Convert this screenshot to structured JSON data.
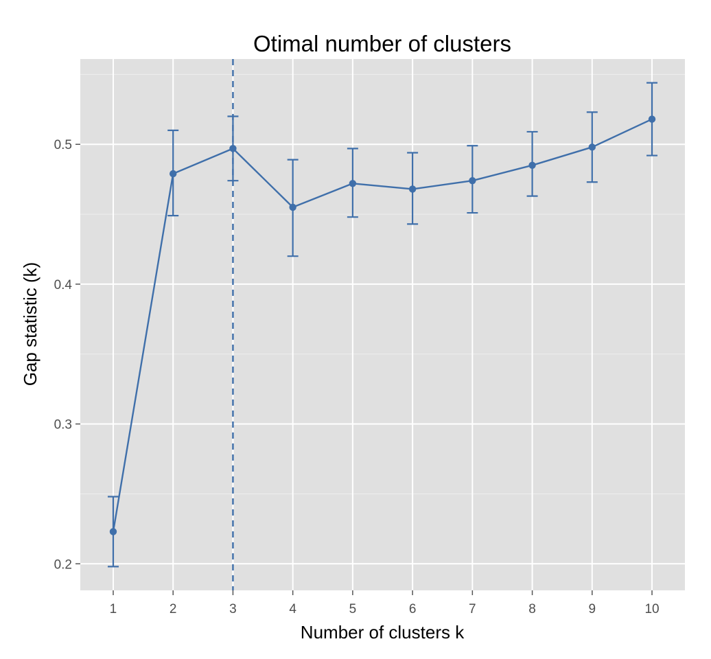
{
  "chart_data": {
    "type": "line",
    "title": "Otimal number of clusters",
    "xlabel": "Number of clusters k",
    "ylabel": "Gap statistic (k)",
    "x": [
      1,
      2,
      3,
      4,
      5,
      6,
      7,
      8,
      9,
      10
    ],
    "series": [
      {
        "values": [
          0.223,
          0.479,
          0.497,
          0.455,
          0.472,
          0.468,
          0.474,
          0.485,
          0.498,
          0.518
        ],
        "lower": [
          0.198,
          0.449,
          0.474,
          0.42,
          0.448,
          0.443,
          0.451,
          0.463,
          0.473,
          0.492
        ],
        "upper": [
          0.248,
          0.51,
          0.52,
          0.489,
          0.497,
          0.494,
          0.499,
          0.509,
          0.523,
          0.544
        ]
      }
    ],
    "reference_line": {
      "x": 3,
      "style": "dashed"
    },
    "x_ticks": [
      "1",
      "2",
      "3",
      "4",
      "5",
      "6",
      "7",
      "8",
      "9",
      "10"
    ],
    "y_ticks": [
      "0.2",
      "0.3",
      "0.4",
      "0.5"
    ],
    "y_tick_values": [
      0.2,
      0.3,
      0.4,
      0.5
    ],
    "xlim": [
      0.45,
      10.55
    ],
    "ylim": [
      0.181,
      0.561
    ],
    "grid": true,
    "colors": {
      "series": "#3f6faa",
      "panel": "#e0e0e0",
      "grid": "#ffffff",
      "tick_text": "#4d4d4d"
    }
  }
}
